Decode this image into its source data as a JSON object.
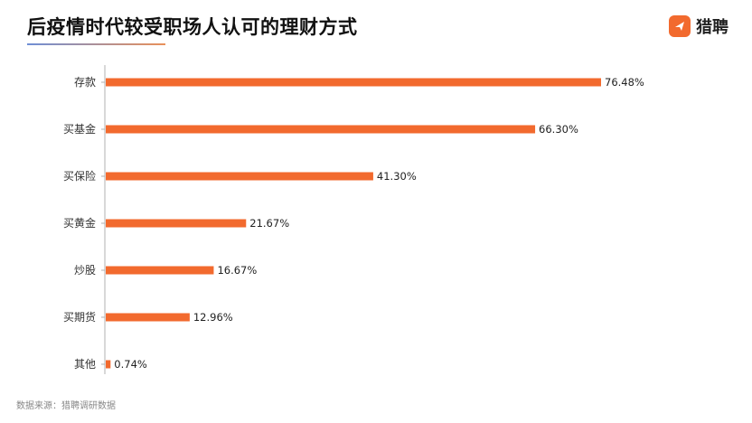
{
  "header": {
    "title": "后疫情时代较受职场人认可的理财方式",
    "logo_text": "猎聘"
  },
  "footer": {
    "source": "数据来源：猎聘调研数据"
  },
  "colors": {
    "bar": "#f26a2e",
    "axis": "#b0b0b0"
  },
  "chart_data": {
    "type": "bar",
    "orientation": "horizontal",
    "title": "后疫情时代较受职场人认可的理财方式",
    "categories": [
      "存款",
      "买基金",
      "买保险",
      "买黄金",
      "炒股",
      "买期货",
      "其他"
    ],
    "values": [
      76.48,
      66.3,
      41.3,
      21.67,
      16.67,
      12.96,
      0.74
    ],
    "value_labels": [
      "76.48%",
      "66.30%",
      "41.30%",
      "21.67%",
      "16.67%",
      "12.96%",
      "0.74%"
    ],
    "unit": "%",
    "xlim": [
      0,
      100
    ],
    "grid": false,
    "legend": "none"
  }
}
